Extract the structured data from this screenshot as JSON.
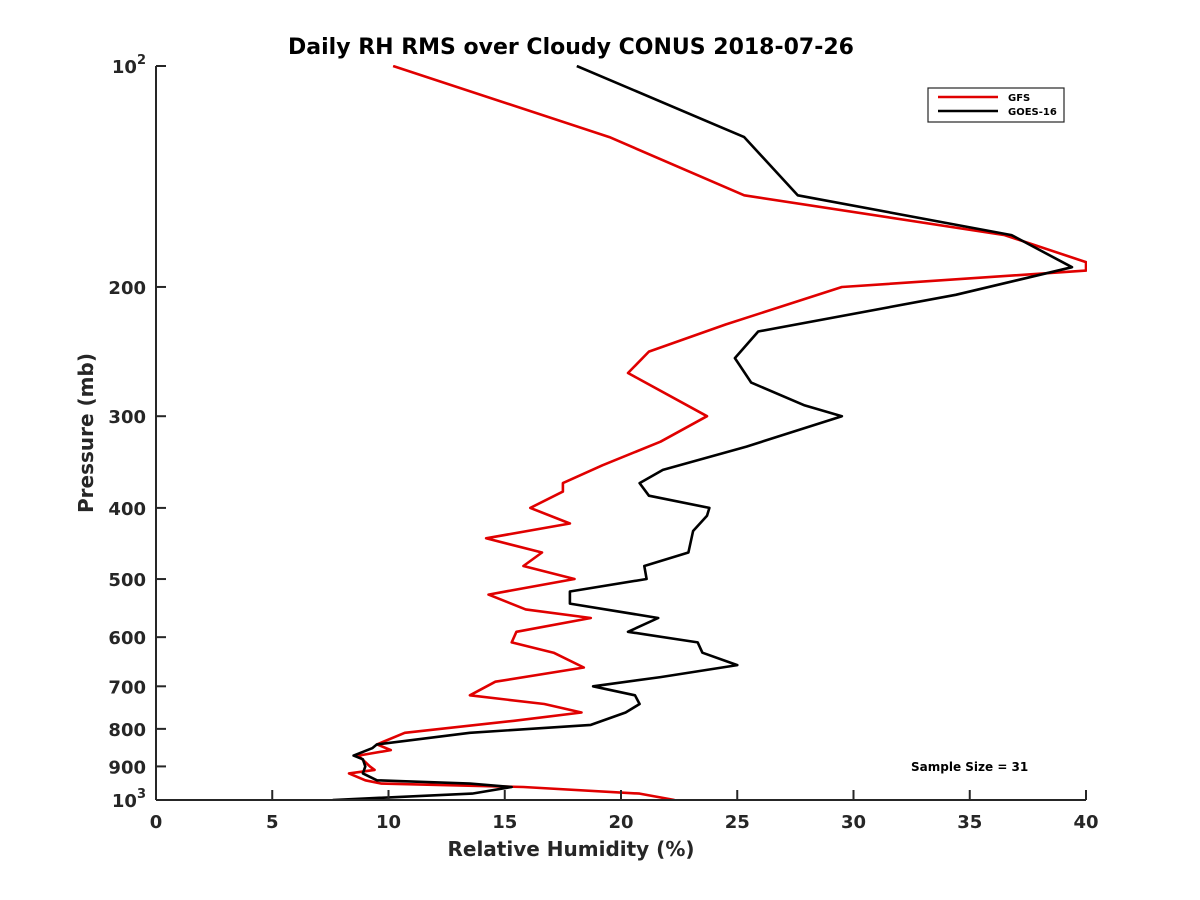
{
  "chart_data": {
    "type": "line",
    "title": "Daily RH RMS over Cloudy CONUS 2018-07-26",
    "xlabel": "Relative Humidity (%)",
    "ylabel": "Pressure (mb)",
    "xlim": [
      0,
      40
    ],
    "ylim": [
      100,
      1000
    ],
    "y_scale": "log",
    "y_reversed": true,
    "x_ticks": [
      0,
      5,
      10,
      15,
      20,
      25,
      30,
      35,
      40
    ],
    "x_tick_labels": [
      "0",
      "5",
      "10",
      "15",
      "20",
      "25",
      "30",
      "35",
      "40"
    ],
    "y_ticks": [
      100,
      200,
      300,
      400,
      500,
      600,
      700,
      800,
      900,
      1000
    ],
    "y_tick_labels": [
      {
        "base": "10",
        "exp": "2"
      },
      {
        "base": "200",
        "exp": ""
      },
      {
        "base": "300",
        "exp": ""
      },
      {
        "base": "400",
        "exp": ""
      },
      {
        "base": "500",
        "exp": ""
      },
      {
        "base": "600",
        "exp": ""
      },
      {
        "base": "700",
        "exp": ""
      },
      {
        "base": "800",
        "exp": ""
      },
      {
        "base": "900",
        "exp": ""
      },
      {
        "base": "10",
        "exp": "3"
      }
    ],
    "grid": false,
    "legend_position": "top-right",
    "annotation": "Sample Size = 31",
    "series": [
      {
        "name": "GFS",
        "color": "#e00000",
        "points": [
          [
            10.2,
            100
          ],
          [
            19.5,
            125
          ],
          [
            25.3,
            150
          ],
          [
            36.5,
            170
          ],
          [
            40,
            185
          ],
          [
            40,
            190
          ],
          [
            29.5,
            200
          ],
          [
            24.5,
            225
          ],
          [
            21.2,
            245
          ],
          [
            20.3,
            262
          ],
          [
            23.7,
            300
          ],
          [
            21.7,
            325
          ],
          [
            19.2,
            350
          ],
          [
            17.5,
            370
          ],
          [
            17.5,
            380
          ],
          [
            16.1,
            400
          ],
          [
            17.8,
            420
          ],
          [
            14.2,
            440
          ],
          [
            16.6,
            460
          ],
          [
            15.8,
            480
          ],
          [
            18.0,
            500
          ],
          [
            14.3,
            525
          ],
          [
            15.9,
            550
          ],
          [
            18.7,
            565
          ],
          [
            15.5,
            590
          ],
          [
            15.3,
            610
          ],
          [
            17.1,
            630
          ],
          [
            18.4,
            660
          ],
          [
            14.6,
            690
          ],
          [
            13.5,
            720
          ],
          [
            16.7,
            740
          ],
          [
            18.3,
            760
          ],
          [
            15.4,
            780
          ],
          [
            10.7,
            810
          ],
          [
            9.5,
            840
          ],
          [
            10.1,
            855
          ],
          [
            8.7,
            870
          ],
          [
            9.2,
            900
          ],
          [
            9.4,
            910
          ],
          [
            8.3,
            920
          ],
          [
            9.0,
            940
          ],
          [
            9.7,
            950
          ],
          [
            15.8,
            960
          ],
          [
            20.8,
            980
          ],
          [
            22.3,
            1000
          ]
        ]
      },
      {
        "name": "GOES-16",
        "color": "#000000",
        "points": [
          [
            18.1,
            100
          ],
          [
            25.3,
            125
          ],
          [
            27.6,
            150
          ],
          [
            36.8,
            170
          ],
          [
            39.4,
            188
          ],
          [
            34.4,
            205
          ],
          [
            25.9,
            230
          ],
          [
            24.9,
            250
          ],
          [
            25.6,
            270
          ],
          [
            27.9,
            290
          ],
          [
            29.5,
            300
          ],
          [
            25.4,
            330
          ],
          [
            21.8,
            355
          ],
          [
            20.8,
            370
          ],
          [
            21.2,
            385
          ],
          [
            23.8,
            400
          ],
          [
            23.7,
            410
          ],
          [
            23.1,
            430
          ],
          [
            22.9,
            460
          ],
          [
            21.0,
            480
          ],
          [
            21.1,
            500
          ],
          [
            17.8,
            520
          ],
          [
            17.8,
            540
          ],
          [
            21.6,
            565
          ],
          [
            20.3,
            590
          ],
          [
            23.3,
            610
          ],
          [
            23.5,
            630
          ],
          [
            25.0,
            655
          ],
          [
            21.7,
            680
          ],
          [
            18.8,
            700
          ],
          [
            20.6,
            720
          ],
          [
            20.8,
            740
          ],
          [
            20.2,
            760
          ],
          [
            18.7,
            790
          ],
          [
            13.5,
            810
          ],
          [
            9.5,
            840
          ],
          [
            9.3,
            850
          ],
          [
            8.5,
            870
          ],
          [
            8.9,
            880
          ],
          [
            9.0,
            900
          ],
          [
            8.9,
            920
          ],
          [
            9.5,
            940
          ],
          [
            13.5,
            950
          ],
          [
            15.3,
            960
          ],
          [
            13.6,
            980
          ],
          [
            7.6,
            1000
          ]
        ]
      }
    ]
  }
}
